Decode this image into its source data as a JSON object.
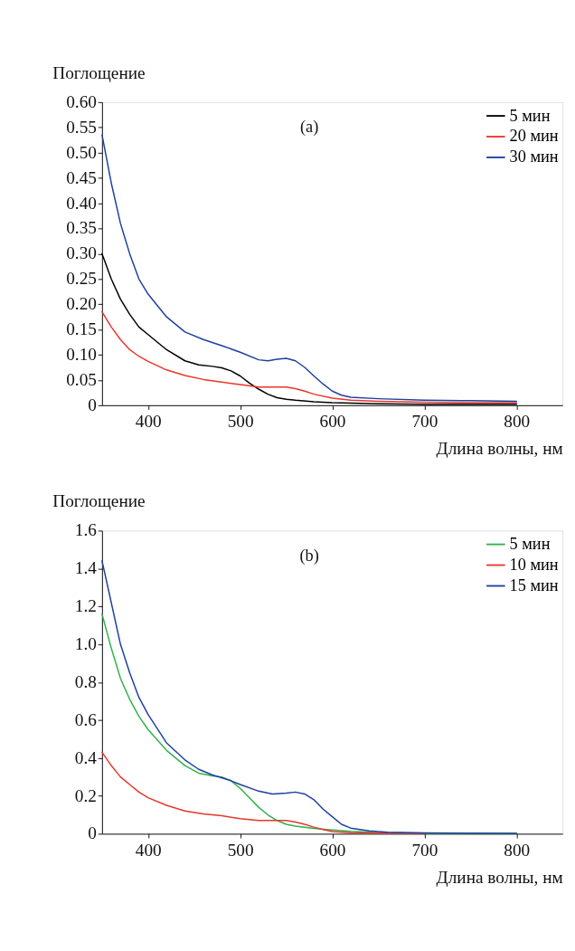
{
  "chart_data": [
    {
      "type": "line",
      "ylabel": "Поглощение",
      "xlabel": "Длина волны, нм",
      "annotations": [
        "(a)"
      ],
      "legend": "top right",
      "grid": false,
      "xlim": [
        350,
        850
      ],
      "xticks": [
        400,
        500,
        600,
        700,
        800
      ],
      "ylim": [
        0,
        0.6
      ],
      "yticks": [
        {
          "value": 0,
          "label": "0"
        },
        {
          "value": 0.05,
          "label": "0.05"
        },
        {
          "value": 0.1,
          "label": "0.10"
        },
        {
          "value": 0.15,
          "label": "0.15"
        },
        {
          "value": 0.2,
          "label": "0.20"
        },
        {
          "value": 0.25,
          "label": "0.25"
        },
        {
          "value": 0.3,
          "label": "0.30"
        },
        {
          "value": 0.35,
          "label": "0.35"
        },
        {
          "value": 0.4,
          "label": "0.40"
        },
        {
          "value": 0.45,
          "label": "0.45"
        },
        {
          "value": 0.5,
          "label": "0.50"
        },
        {
          "value": 0.55,
          "label": "0.55"
        },
        {
          "value": 0.6,
          "label": "0.60"
        }
      ],
      "series": [
        {
          "name": "5 мин",
          "color": "#000000",
          "x": [
            350,
            360,
            370,
            380,
            390,
            400,
            420,
            440,
            455,
            470,
            480,
            490,
            500,
            510,
            520,
            530,
            540,
            550,
            560,
            580,
            600,
            650,
            700,
            750,
            800
          ],
          "values": [
            0.3,
            0.25,
            0.21,
            0.18,
            0.155,
            0.14,
            0.11,
            0.088,
            0.08,
            0.077,
            0.074,
            0.068,
            0.058,
            0.044,
            0.032,
            0.022,
            0.015,
            0.012,
            0.01,
            0.007,
            0.005,
            0.003,
            0.002,
            0.002,
            0.002
          ]
        },
        {
          "name": "20 мин",
          "color": "#e8362a",
          "x": [
            350,
            360,
            370,
            380,
            390,
            400,
            420,
            440,
            460,
            480,
            500,
            520,
            540,
            550,
            560,
            570,
            580,
            600,
            620,
            650,
            700,
            750,
            800
          ],
          "values": [
            0.185,
            0.155,
            0.13,
            0.11,
            0.097,
            0.087,
            0.07,
            0.059,
            0.051,
            0.046,
            0.041,
            0.036,
            0.036,
            0.036,
            0.033,
            0.028,
            0.022,
            0.014,
            0.01,
            0.008,
            0.006,
            0.005,
            0.005
          ]
        },
        {
          "name": "30 мин",
          "color": "#1f3f9f",
          "x": [
            350,
            360,
            370,
            380,
            390,
            400,
            420,
            440,
            460,
            480,
            500,
            520,
            530,
            540,
            550,
            560,
            570,
            580,
            590,
            600,
            610,
            620,
            650,
            700,
            750,
            800
          ],
          "values": [
            0.535,
            0.44,
            0.36,
            0.3,
            0.25,
            0.22,
            0.175,
            0.145,
            0.13,
            0.118,
            0.105,
            0.09,
            0.088,
            0.091,
            0.093,
            0.088,
            0.075,
            0.058,
            0.042,
            0.028,
            0.02,
            0.016,
            0.013,
            0.01,
            0.009,
            0.008
          ]
        }
      ]
    },
    {
      "type": "line",
      "ylabel": "Поглощение",
      "xlabel": "Длина волны, нм",
      "annotations": [
        "(b)"
      ],
      "legend": "top right",
      "grid": false,
      "xlim": [
        350,
        850
      ],
      "xticks": [
        400,
        500,
        600,
        700,
        800
      ],
      "ylim": [
        0,
        1.6
      ],
      "yticks": [
        {
          "value": 0,
          "label": "0"
        },
        {
          "value": 0.2,
          "label": "0.2"
        },
        {
          "value": 0.4,
          "label": "0.4"
        },
        {
          "value": 0.6,
          "label": "0.6"
        },
        {
          "value": 0.8,
          "label": "0.8"
        },
        {
          "value": 1.0,
          "label": "1.0"
        },
        {
          "value": 1.2,
          "label": "1.2"
        },
        {
          "value": 1.4,
          "label": "1.4"
        },
        {
          "value": 1.6,
          "label": "1.6"
        }
      ],
      "series": [
        {
          "name": "5 мин",
          "color": "#2db34a",
          "x": [
            350,
            360,
            370,
            380,
            390,
            400,
            420,
            440,
            455,
            470,
            480,
            490,
            500,
            510,
            520,
            530,
            540,
            550,
            560,
            580,
            600,
            620,
            650,
            700,
            800
          ],
          "values": [
            1.16,
            0.98,
            0.82,
            0.71,
            0.62,
            0.55,
            0.44,
            0.36,
            0.32,
            0.305,
            0.3,
            0.28,
            0.24,
            0.19,
            0.14,
            0.1,
            0.07,
            0.05,
            0.04,
            0.028,
            0.02,
            0.013,
            0.006,
            0.003,
            0.002
          ]
        },
        {
          "name": "10 мин",
          "color": "#e8362a",
          "x": [
            350,
            360,
            370,
            380,
            390,
            400,
            420,
            440,
            460,
            480,
            500,
            520,
            540,
            550,
            560,
            570,
            580,
            590,
            600,
            620,
            650,
            700
          ],
          "values": [
            0.43,
            0.36,
            0.3,
            0.26,
            0.22,
            0.19,
            0.15,
            0.12,
            0.105,
            0.095,
            0.08,
            0.07,
            0.07,
            0.07,
            0.062,
            0.05,
            0.035,
            0.022,
            0.012,
            0.006,
            0.003,
            0.002
          ]
        },
        {
          "name": "15 мин",
          "color": "#1f3f9f",
          "x": [
            350,
            360,
            370,
            380,
            390,
            400,
            420,
            440,
            455,
            470,
            490,
            500,
            520,
            535,
            550,
            560,
            570,
            580,
            590,
            600,
            610,
            620,
            640,
            660,
            700,
            800
          ],
          "values": [
            1.44,
            1.22,
            1.0,
            0.85,
            0.72,
            0.63,
            0.48,
            0.39,
            0.34,
            0.31,
            0.28,
            0.26,
            0.225,
            0.21,
            0.215,
            0.22,
            0.21,
            0.18,
            0.13,
            0.09,
            0.05,
            0.03,
            0.015,
            0.008,
            0.004,
            0.002
          ]
        }
      ]
    }
  ]
}
